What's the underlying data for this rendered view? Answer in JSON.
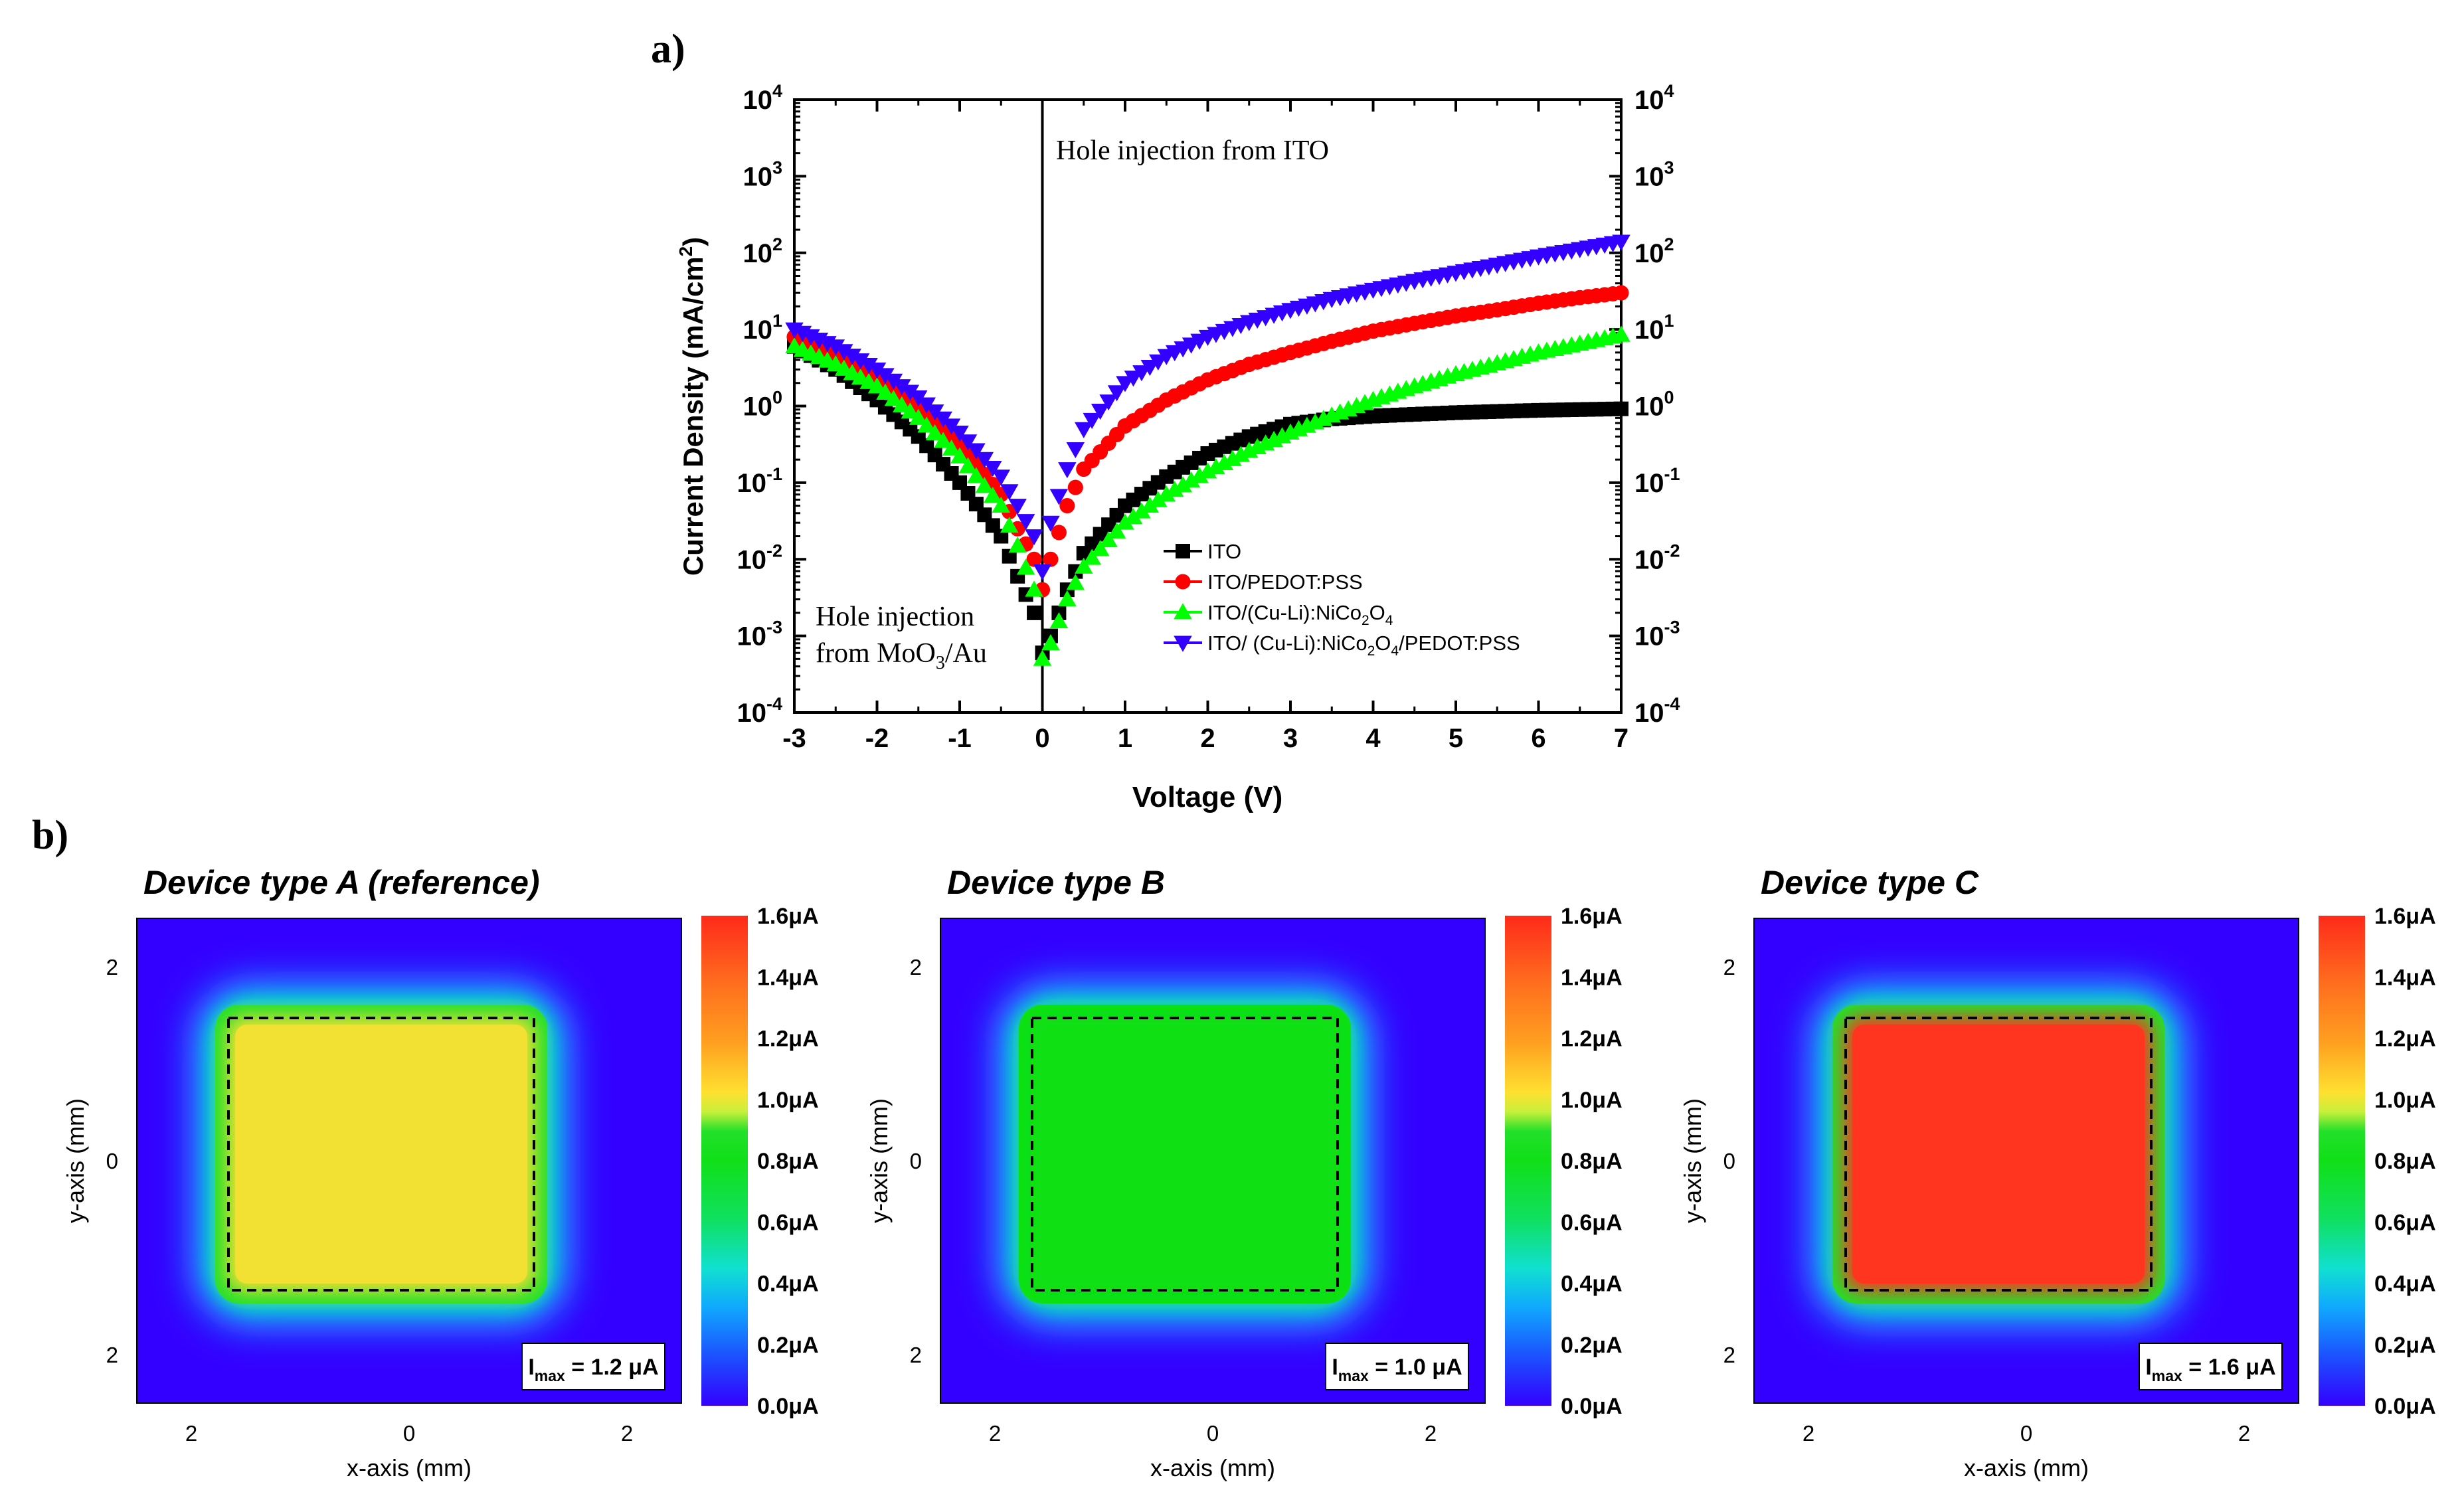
{
  "figure": {
    "panel_a_label": "a)",
    "panel_b_label": "b)"
  },
  "chart_data": [
    {
      "type": "scatter",
      "panel": "a)",
      "title": "",
      "xlabel": "Voltage (V)",
      "ylabel": "Current Density (mA/cm²)",
      "ylabel_main": "Current Density (mA/cm",
      "ylabel_sup": "2",
      "ylabel_end": ")",
      "yscale": "log",
      "xlim": [
        -3,
        7
      ],
      "ylim": [
        0.0001,
        10000
      ],
      "x_ticks": [
        "-3",
        "-2",
        "-1",
        "0",
        "1",
        "2",
        "3",
        "4",
        "5",
        "6",
        "7"
      ],
      "y_ticks": [
        {
          "base": "10",
          "exp": "4"
        },
        {
          "base": "10",
          "exp": "3"
        },
        {
          "base": "10",
          "exp": "2"
        },
        {
          "base": "10",
          "exp": "1"
        },
        {
          "base": "10",
          "exp": "0"
        },
        {
          "base": "10",
          "exp": "-1"
        },
        {
          "base": "10",
          "exp": "-2"
        },
        {
          "base": "10",
          "exp": "-3"
        },
        {
          "base": "10",
          "exp": "-4"
        }
      ],
      "annotations": {
        "right": "Hole injection from ITO",
        "left_line1": "Hole injection",
        "left_line2_a": "from MoO",
        "left_line2_sub": "3",
        "left_line2_b": "/Au"
      },
      "legend_position": "lower-right",
      "series": [
        {
          "name": "ITO",
          "legend": [
            {
              "t": "ITO",
              "s": false
            }
          ],
          "color": "#000000",
          "marker": "square",
          "x": [
            -3,
            -2.5,
            -2,
            -1.5,
            -1,
            -0.5,
            -0.3,
            -0.1,
            0,
            0.1,
            0.3,
            0.5,
            1,
            1.5,
            2,
            2.5,
            3,
            3.5,
            4,
            4.5,
            5,
            5.5,
            6,
            6.5,
            7
          ],
          "y": [
            6,
            3,
            1.2,
            0.4,
            0.1,
            0.02,
            0.006,
            0.002,
            0.0006,
            0.001,
            0.004,
            0.012,
            0.05,
            0.12,
            0.24,
            0.4,
            0.58,
            0.68,
            0.74,
            0.78,
            0.82,
            0.85,
            0.88,
            0.9,
            0.92
          ]
        },
        {
          "name": "ITO/PEDOT:PSS",
          "legend": [
            {
              "t": "ITO/PEDOT:PSS",
              "s": false
            }
          ],
          "color": "#ff0000",
          "marker": "circle",
          "x": [
            -3,
            -2.5,
            -2,
            -1.5,
            -1,
            -0.5,
            -0.3,
            -0.1,
            0,
            0.1,
            0.3,
            0.5,
            1,
            1.5,
            2,
            2.5,
            3,
            3.5,
            4,
            4.5,
            5,
            5.5,
            6,
            6.5,
            7
          ],
          "y": [
            8,
            4.5,
            2.2,
            0.9,
            0.32,
            0.07,
            0.025,
            0.01,
            0.004,
            0.01,
            0.05,
            0.15,
            0.55,
            1.2,
            2.2,
            3.5,
            5,
            7,
            9.5,
            12,
            15,
            18,
            22,
            26,
            30
          ]
        },
        {
          "name": "ITO/(Cu-Li):NiCo2O4",
          "legend": [
            {
              "t": "ITO/(Cu-Li):NiCo",
              "s": false
            },
            {
              "t": "2",
              "s": true
            },
            {
              "t": "O",
              "s": false
            },
            {
              "t": "4",
              "s": true
            }
          ],
          "color": "#00ff00",
          "marker": "triangle-up",
          "x": [
            -3,
            -2.5,
            -2,
            -1.5,
            -1,
            -0.5,
            -0.3,
            -0.1,
            0,
            0.1,
            0.3,
            0.5,
            1,
            1.5,
            2,
            2.5,
            3,
            3.5,
            4,
            4.5,
            5,
            5.5,
            6,
            6.5,
            7
          ],
          "y": [
            6,
            3.5,
            1.8,
            0.7,
            0.22,
            0.05,
            0.015,
            0.004,
            0.0005,
            0.0008,
            0.003,
            0.008,
            0.03,
            0.07,
            0.14,
            0.26,
            0.45,
            0.75,
            1.2,
            1.8,
            2.6,
            3.6,
            5,
            6.5,
            8.5
          ]
        },
        {
          "name": "ITO/ (Cu-Li):NiCo2O4/PEDOT:PSS",
          "legend": [
            {
              "t": "ITO/ (Cu-Li):NiCo",
              "s": false
            },
            {
              "t": "2",
              "s": true
            },
            {
              "t": "O",
              "s": false
            },
            {
              "t": "4",
              "s": true
            },
            {
              "t": "/PEDOT:PSS",
              "s": false
            }
          ],
          "color": "#3300ff",
          "marker": "triangle-down",
          "x": [
            -3,
            -2.5,
            -2,
            -1.5,
            -1,
            -0.5,
            -0.3,
            -0.1,
            0,
            0.1,
            0.3,
            0.5,
            1,
            1.5,
            2,
            2.5,
            3,
            3.5,
            4,
            4.5,
            5,
            5.5,
            6,
            6.5,
            7
          ],
          "y": [
            10,
            6,
            3,
            1.3,
            0.45,
            0.12,
            0.05,
            0.02,
            0.007,
            0.03,
            0.15,
            0.5,
            2,
            4.5,
            8,
            12.5,
            18,
            25,
            33,
            43,
            55,
            70,
            90,
            112,
            140
          ]
        }
      ]
    },
    {
      "type": "heatmap",
      "panel": "b)",
      "title": "Device type A (reference)",
      "xlabel": "x-axis (mm)",
      "ylabel": "y-axis (mm)",
      "x_ticks": [
        "2",
        "0",
        "2"
      ],
      "y_ticks": [
        "2",
        "0",
        "2"
      ],
      "imax_prefix": "I",
      "imax_sub": "max",
      "imax_value": " = 1.2 μA",
      "imax": 1.2,
      "unit": "μA",
      "colorbar_ticks": [
        "1.6μA",
        "1.4μA",
        "1.2μA",
        "1.0μA",
        "0.8μA",
        "0.6μA",
        "0.4μA",
        "0.2μA",
        "0.0μA"
      ],
      "fill_color": "#f2e033",
      "ring_color": "#22e02a",
      "background_color": "#3300ff"
    },
    {
      "type": "heatmap",
      "panel": "b)",
      "title": "Device type B",
      "xlabel": "x-axis (mm)",
      "ylabel": "y-axis (mm)",
      "x_ticks": [
        "2",
        "0",
        "2"
      ],
      "y_ticks": [
        "2",
        "0",
        "2"
      ],
      "imax_prefix": "I",
      "imax_sub": "max",
      "imax_value": " = 1.0 μA",
      "imax": 1.0,
      "unit": "μA",
      "colorbar_ticks": [
        "1.6μA",
        "1.4μA",
        "1.2μA",
        "1.0μA",
        "0.8μA",
        "0.6μA",
        "0.4μA",
        "0.2μA",
        "0.0μA"
      ],
      "fill_color": "#0ee014",
      "ring_color": "#0ee014",
      "background_color": "#3300ff"
    },
    {
      "type": "heatmap",
      "panel": "b)",
      "title": "Device type C",
      "xlabel": "x-axis (mm)",
      "ylabel": "y-axis (mm)",
      "x_ticks": [
        "2",
        "0",
        "2"
      ],
      "y_ticks": [
        "2",
        "0",
        "2"
      ],
      "imax_prefix": "I",
      "imax_sub": "max",
      "imax_value": " = 1.6 μA",
      "imax": 1.6,
      "unit": "μA",
      "colorbar_ticks": [
        "1.6μA",
        "1.4μA",
        "1.2μA",
        "1.0μA",
        "0.8μA",
        "0.6μA",
        "0.4μA",
        "0.2μA",
        "0.0μA"
      ],
      "fill_color": "#ff3520",
      "ring_color": "#22e02a",
      "background_color": "#3300ff"
    }
  ]
}
